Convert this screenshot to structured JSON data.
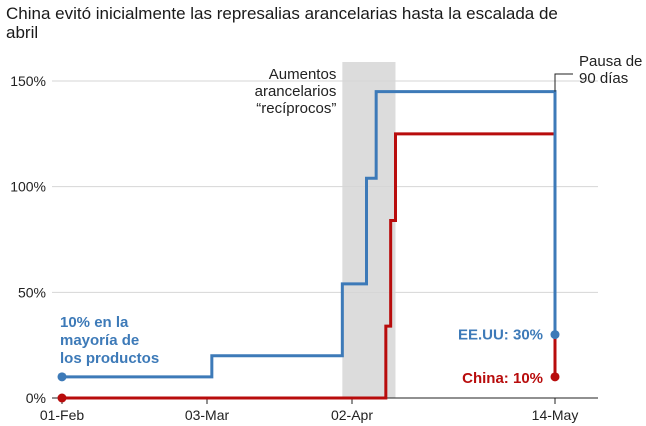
{
  "chart_data": {
    "type": "line",
    "title": "China evitó inicialmente las represalias arancelarias hasta la escalada de abril",
    "x_ticks": [
      "01-Feb",
      "03-Mar",
      "02-Apr",
      "14-May"
    ],
    "y_ticks": [
      "0%",
      "50%",
      "100%",
      "150%"
    ],
    "ylim": [
      0,
      150
    ],
    "grid": "horizontal",
    "colors": {
      "us": "#3d7ab8",
      "china": "#b80c0c",
      "shade": "#dcdcdc"
    },
    "shaded_span": {
      "x": [
        "2025-03-31",
        "2025-04-11"
      ],
      "label_lines": [
        "Aumentos",
        "arancelarios",
        "“recíprocos”"
      ]
    },
    "series": [
      {
        "key": "us",
        "name": "EE.UU: 30%",
        "x": [
          "2025-02-01",
          "2025-03-04",
          "2025-03-31",
          "2025-04-05",
          "2025-04-06",
          "2025-04-07",
          "2025-05-14",
          "2025-05-14"
        ],
        "y": [
          10,
          20,
          54,
          104,
          104,
          145,
          145,
          30
        ]
      },
      {
        "key": "china",
        "name": "China: 10%",
        "x": [
          "2025-02-01",
          "2025-04-02",
          "2025-04-09",
          "2025-04-10",
          "2025-04-11",
          "2025-04-11",
          "2025-05-14",
          "2025-05-14"
        ],
        "y": [
          0,
          0,
          34,
          84,
          84,
          125,
          125,
          10
        ]
      }
    ],
    "annotations": {
      "start_label": [
        "10% en la",
        "mayoría de",
        "los productos"
      ],
      "pause_label": [
        "Pausa de",
        "90 días"
      ]
    }
  }
}
